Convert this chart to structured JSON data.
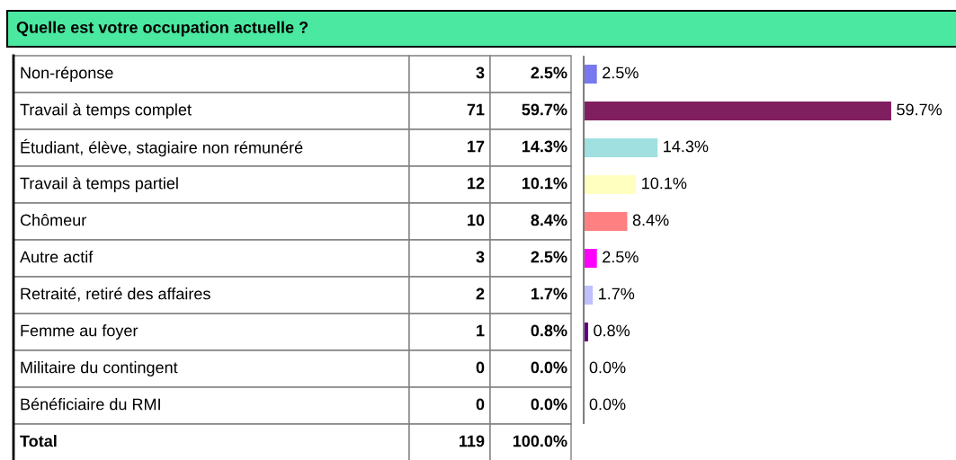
{
  "chart_data": {
    "type": "bar",
    "orientation": "horizontal",
    "title": "Quelle est votre occupation actuelle ?",
    "categories": [
      "Non-réponse",
      "Travail à temps complet",
      "Étudiant, élève, stagiaire non rémunéré",
      "Travail à temps partiel",
      "Chômeur",
      "Autre actif",
      "Retraité, retiré des affaires",
      "Femme au foyer",
      "Militaire du contingent",
      "Bénéficiaire du RMI"
    ],
    "values": [
      2.5,
      59.7,
      14.3,
      10.1,
      8.4,
      2.5,
      1.7,
      0.8,
      0.0,
      0.0
    ],
    "value_labels": [
      "2.5%",
      "59.7%",
      "14.3%",
      "10.1%",
      "8.4%",
      "2.5%",
      "1.7%",
      "0.8%",
      "0.0%",
      "0.0%"
    ],
    "colors": [
      "#7878f0",
      "#801f60",
      "#a0e0e0",
      "#ffffc0",
      "#ff8080",
      "#ff00ff",
      "#c0c0ff",
      "#600080",
      "#006080",
      "#000080"
    ],
    "annotations": [
      "3",
      "71",
      "17",
      "12",
      "10",
      "3",
      "2",
      "1",
      "0",
      "0",
      "Total",
      "119",
      "100.0%"
    ]
  }
}
